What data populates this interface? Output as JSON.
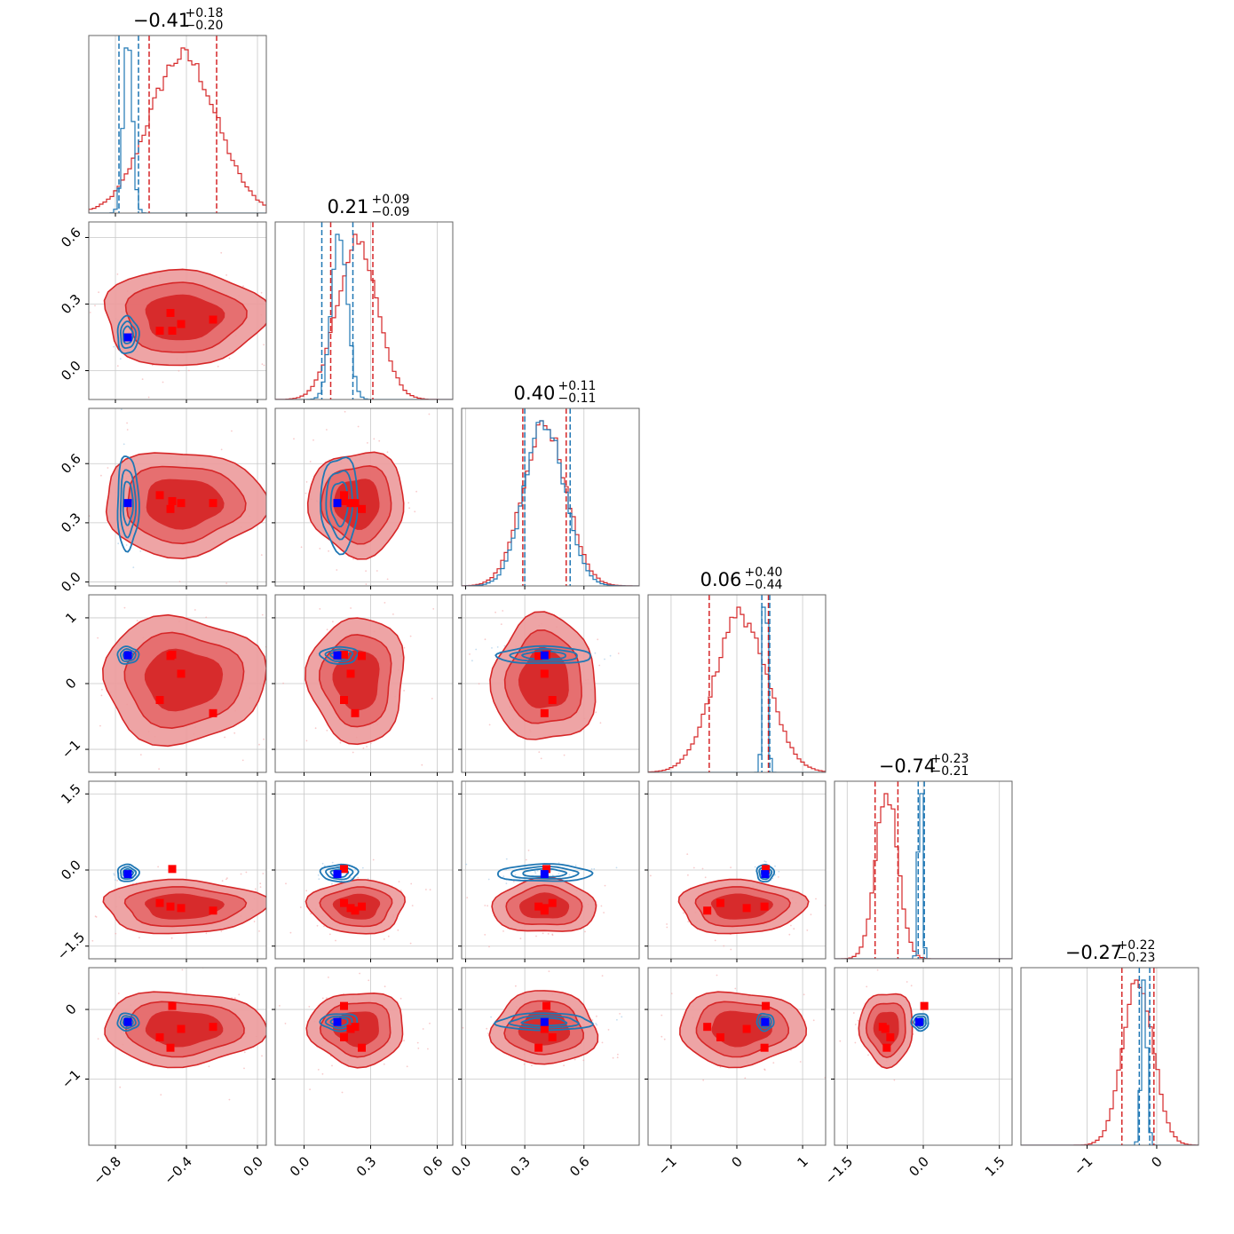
{
  "chart_data": {
    "type": "scatter",
    "subtype": "corner-plot",
    "parameters": 6,
    "colors": {
      "red": "#d62728",
      "blue": "#1f77b4",
      "red_fill_inner": "#d62728",
      "red_fill_outer": "#ec9a9b",
      "marker_blue": "#0000ff",
      "marker_red": "#ff0000",
      "grid": "#c8c8c8"
    },
    "titles": [
      {
        "value": "−0.41",
        "plus": "+0.18",
        "minus": "−0.20"
      },
      {
        "value": "0.21",
        "plus": "+0.09",
        "minus": "−0.09"
      },
      {
        "value": "0.40",
        "plus": "+0.11",
        "minus": "−0.11"
      },
      {
        "value": "0.06",
        "plus": "+0.40",
        "minus": "−0.44"
      },
      {
        "value": "−0.74",
        "plus": "+0.23",
        "minus": "−0.21"
      },
      {
        "value": "−0.27",
        "plus": "+0.22",
        "minus": "−0.23"
      }
    ],
    "ranges": [
      [
        -0.95,
        0.05
      ],
      [
        -0.13,
        0.67
      ],
      [
        -0.02,
        0.88
      ],
      [
        -1.35,
        1.35
      ],
      [
        -1.75,
        1.75
      ],
      [
        -1.95,
        0.6
      ]
    ],
    "ticks": [
      {
        "values": [
          -0.8,
          -0.4,
          0.0
        ],
        "labels": [
          "−0.8",
          "−0.4",
          "0.0"
        ]
      },
      {
        "values": [
          0.0,
          0.3,
          0.6
        ],
        "labels": [
          "0.0",
          "0.3",
          "0.6"
        ]
      },
      {
        "values": [
          0.0,
          0.3,
          0.6
        ],
        "labels": [
          "0.0",
          "0.3",
          "0.6"
        ]
      },
      {
        "values": [
          -1,
          0,
          1
        ],
        "labels": [
          "−1",
          "0",
          "1"
        ]
      },
      {
        "values": [
          -1.5,
          0.0,
          1.5
        ],
        "labels": [
          "−1.5",
          "0.0",
          "1.5"
        ]
      },
      {
        "values": [
          -1,
          0
        ],
        "labels": [
          "−1",
          "0"
        ]
      }
    ],
    "red_quantiles": [
      [
        -0.61,
        -0.23
      ],
      [
        0.12,
        0.31
      ],
      [
        0.29,
        0.51
      ],
      [
        -0.42,
        0.48
      ],
      [
        -0.95,
        -0.5
      ],
      [
        -0.5,
        -0.04
      ]
    ],
    "blue_quantiles": [
      [
        -0.78,
        -0.67
      ],
      [
        0.08,
        0.22
      ],
      [
        0.3,
        0.53
      ],
      [
        0.38,
        0.5
      ],
      [
        -0.1,
        0.02
      ],
      [
        -0.25,
        -0.1
      ]
    ],
    "red_centers": [
      -0.42,
      0.24,
      0.4,
      0.06,
      -0.72,
      -0.27
    ],
    "red_spreads": [
      0.19,
      0.09,
      0.11,
      0.4,
      0.22,
      0.22
    ],
    "blue_centers": [
      -0.73,
      0.16,
      0.4,
      0.43,
      -0.06,
      -0.18
    ],
    "blue_spreads": [
      0.025,
      0.035,
      0.1,
      0.035,
      0.04,
      0.04
    ],
    "blue_marker": [
      -0.73,
      0.15,
      0.4,
      0.43,
      -0.08,
      -0.18
    ],
    "red_markers": [
      [
        -0.55,
        0.18,
        0.44,
        -0.25,
        -0.65,
        -0.4
      ],
      [
        -0.49,
        0.26,
        0.37,
        0.42,
        -0.72,
        -0.55
      ],
      [
        -0.43,
        0.21,
        0.4,
        0.15,
        -0.75,
        -0.28
      ],
      [
        -0.25,
        0.23,
        0.4,
        -0.45,
        -0.8,
        -0.25
      ],
      [
        -0.48,
        0.18,
        0.41,
        0.44,
        0.02,
        0.05
      ]
    ]
  }
}
